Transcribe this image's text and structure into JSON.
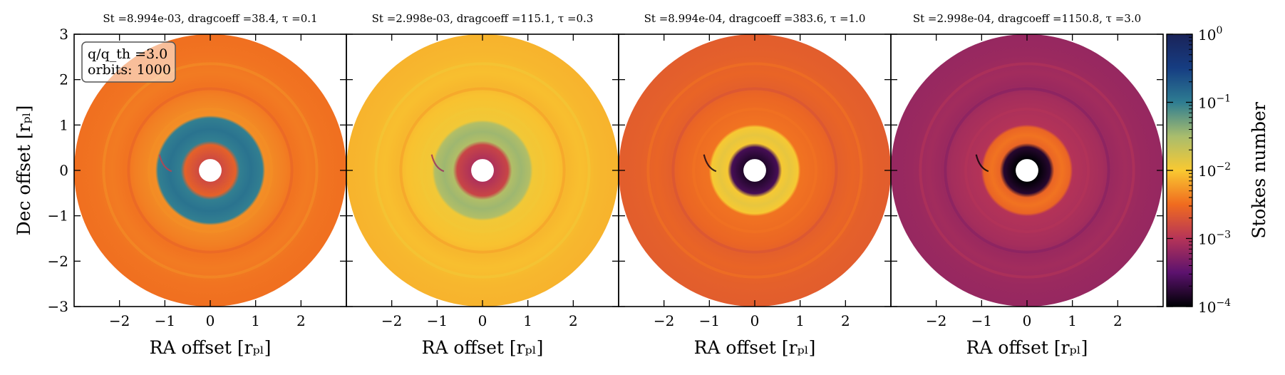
{
  "chart_data": [
    {
      "type": "heatmap",
      "title": "St =8.994e-03, dragcoeff =38.4, τ =0.1",
      "xlabel": "RA offset [rₚₗ]",
      "ylabel": "Dec offset [rₚₗ]",
      "xticks": [
        "−2",
        "−1",
        "0",
        "1",
        "2"
      ],
      "yticks": [
        "−3",
        "−2",
        "−1",
        "0",
        "1",
        "2",
        "3"
      ],
      "xlim": [
        -3,
        3
      ],
      "ylim": [
        -3,
        3
      ],
      "annotation": [
        "q/q_th =3.0",
        "orbits: 1000"
      ],
      "field": {
        "background_stokes": 0.0035,
        "ring_max_stokes": 0.12,
        "inner_disk_stokes": 0.0016,
        "inner_hole_radius": 0.25,
        "gap_inner_radius": 0.65,
        "gap_outer_radius": 1.15,
        "outer_radius": 3.0
      }
    },
    {
      "type": "heatmap",
      "title": "St =2.998e-03, dragcoeff =115.1, τ =0.3",
      "xlabel": "RA offset [rₚₗ]",
      "xticks": [
        "−2",
        "−1",
        "0",
        "1",
        "2"
      ],
      "xlim": [
        -3,
        3
      ],
      "ylim": [
        -3,
        3
      ],
      "field": {
        "background_stokes": 0.008,
        "ring_max_stokes": 0.035,
        "inner_disk_stokes": 0.0009,
        "inner_hole_radius": 0.25,
        "gap_inner_radius": 0.65,
        "gap_outer_radius": 1.05,
        "outer_radius": 3.0
      }
    },
    {
      "type": "heatmap",
      "title": "St =8.994e-04, dragcoeff =383.6, τ =1.0",
      "xlabel": "RA offset [rₚₗ]",
      "xticks": [
        "−2",
        "−1",
        "0",
        "1",
        "2"
      ],
      "xlim": [
        -3,
        3
      ],
      "ylim": [
        -3,
        3
      ],
      "field": {
        "background_stokes": 0.0025,
        "ring_max_stokes": 0.013,
        "inner_disk_stokes": 0.00015,
        "inner_hole_radius": 0.25,
        "gap_inner_radius": 0.6,
        "gap_outer_radius": 0.95,
        "outer_radius": 3.0
      }
    },
    {
      "type": "heatmap",
      "title": "St =2.998e-04, dragcoeff =1150.8, τ =3.0",
      "xlabel": "RA offset [rₚₗ]",
      "xticks": [
        "−2",
        "−1",
        "0",
        "1",
        "2"
      ],
      "xlim": [
        -3,
        3
      ],
      "ylim": [
        -3,
        3
      ],
      "field": {
        "background_stokes": 0.0007,
        "ring_max_stokes": 0.0035,
        "inner_disk_stokes": 0.0001,
        "inner_hole_radius": 0.25,
        "gap_inner_radius": 0.6,
        "gap_outer_radius": 0.95,
        "outer_radius": 3.0
      }
    }
  ],
  "colorbar": {
    "label": "Stokes number",
    "scale": "log",
    "range": [
      0.0001,
      1
    ],
    "ticks": [
      {
        "base": "10",
        "exp": "0",
        "value": 1
      },
      {
        "base": "10",
        "exp": "−1",
        "value": 0.1
      },
      {
        "base": "10",
        "exp": "−2",
        "value": 0.01
      },
      {
        "base": "10",
        "exp": "−3",
        "value": 0.001
      },
      {
        "base": "10",
        "exp": "−4",
        "value": 0.0001
      }
    ],
    "colormap": [
      "#000004",
      "#5c126e",
      "#b63458",
      "#f06b1f",
      "#f9c931",
      "#a9bd6d",
      "#2e7d92",
      "#163d82",
      "#1a2359"
    ]
  }
}
